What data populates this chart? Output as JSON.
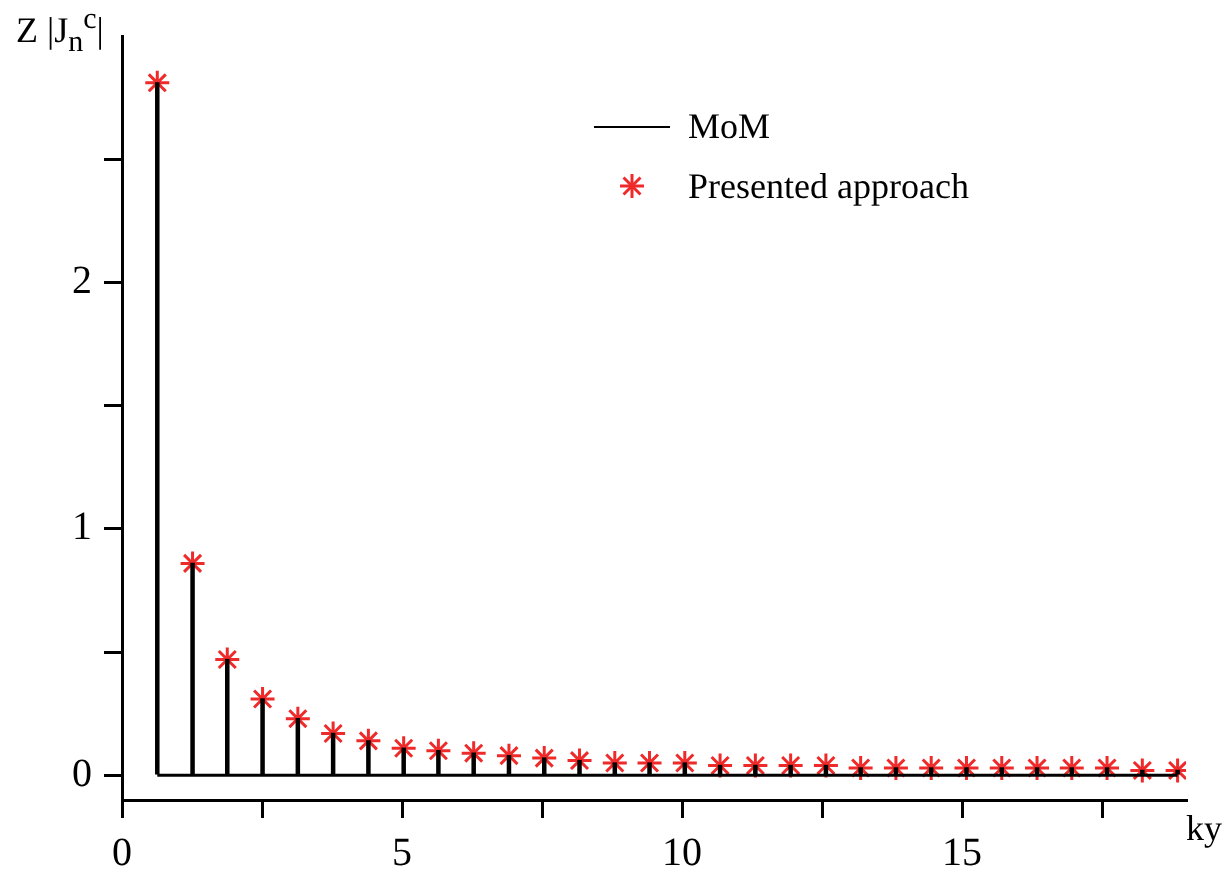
{
  "chart_data": {
    "type": "bar",
    "xlabel": "ky",
    "ylabel": "Z |J$_{n}$$^{c}$|",
    "x": [
      0.63,
      1.26,
      1.88,
      2.51,
      3.14,
      3.77,
      4.4,
      5.03,
      5.65,
      6.28,
      6.91,
      7.54,
      8.17,
      8.8,
      9.42,
      10.05,
      10.68,
      11.31,
      11.94,
      12.57,
      13.19,
      13.82,
      14.45,
      15.08,
      15.71,
      16.34,
      16.96,
      17.59,
      18.22,
      18.85
    ],
    "series": [
      {
        "name": "MoM",
        "type": "bar",
        "color": "#000000",
        "values": [
          2.81,
          0.86,
          0.47,
          0.31,
          0.23,
          0.17,
          0.14,
          0.11,
          0.1,
          0.09,
          0.08,
          0.07,
          0.06,
          0.05,
          0.05,
          0.05,
          0.04,
          0.04,
          0.04,
          0.04,
          0.03,
          0.03,
          0.03,
          0.03,
          0.03,
          0.03,
          0.03,
          0.03,
          0.02,
          0.02
        ]
      },
      {
        "name": "Presented approach",
        "type": "scatter",
        "marker": "cross",
        "color": "#ee2a2a",
        "values": [
          2.81,
          0.86,
          0.47,
          0.31,
          0.23,
          0.17,
          0.14,
          0.11,
          0.1,
          0.09,
          0.08,
          0.07,
          0.06,
          0.05,
          0.05,
          0.05,
          0.04,
          0.04,
          0.04,
          0.04,
          0.03,
          0.03,
          0.03,
          0.03,
          0.03,
          0.03,
          0.03,
          0.03,
          0.02,
          0.02
        ]
      }
    ],
    "xlim": [
      0,
      19
    ],
    "xticks": [
      0,
      {
        "value": 2.5,
        "label": null
      },
      5,
      {
        "value": 7.5,
        "label": null
      },
      10,
      {
        "value": 12.5,
        "label": null
      },
      15,
      {
        "value": 17.5,
        "label": null
      }
    ],
    "ylim": [
      -0.1,
      3
    ],
    "yticks": [
      0,
      {
        "value": 0.5,
        "label": null
      },
      1,
      {
        "value": 1.5,
        "label": null
      },
      2,
      {
        "value": 2.5,
        "label": null
      }
    ],
    "legend": "top right"
  }
}
